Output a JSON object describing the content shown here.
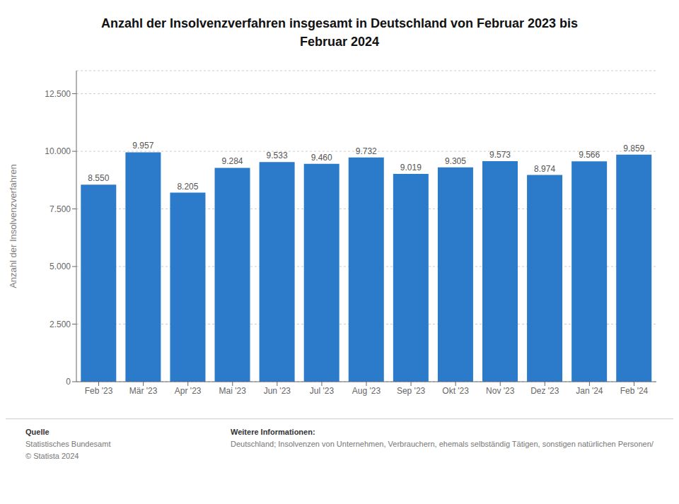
{
  "chart_data": {
    "type": "bar",
    "title": "Anzahl der Insolvenzverfahren insgesamt in Deutschland von Februar 2023 bis\nFebruar 2024",
    "categories": [
      "Feb '23",
      "Mär '23",
      "Apr '23",
      "Mai '23",
      "Jun '23",
      "Jul '23",
      "Aug '23",
      "Sep '23",
      "Okt '23",
      "Nov '23",
      "Dez '23",
      "Jan '24",
      "Feb '24"
    ],
    "values": [
      8550,
      9957,
      8205,
      9284,
      9533,
      9460,
      9732,
      9019,
      9305,
      9573,
      8974,
      9566,
      9859
    ],
    "value_labels": [
      "8.550",
      "9.957",
      "8.205",
      "9.284",
      "9.533",
      "9.460",
      "9.732",
      "9.019",
      "9.305",
      "9.573",
      "8.974",
      "9.566",
      "9.859"
    ],
    "data_labels": true,
    "color": "#2b7bca",
    "ylabel": "Anzahl der Insolvenzverfahren",
    "ylim": [
      0,
      13500
    ],
    "yticks": [
      0,
      {
        "value": 2500,
        "label": "2.500"
      },
      {
        "value": 5000,
        "label": "5.000"
      },
      {
        "value": 7500,
        "label": "7.500"
      },
      {
        "value": 10000,
        "label": "10.000"
      },
      {
        "value": 12500,
        "label": "12.500"
      }
    ],
    "grid": true,
    "annotations": [
      "Quelle",
      "Statistisches Bundesamt",
      "© Statista 2024",
      "Weitere Informationen:",
      "Deutschland; Insolvenzen von Unternehmen, Verbrauchern, ehemals selbständig Tätigen, sonstigen natürlichen Personen/"
    ]
  }
}
